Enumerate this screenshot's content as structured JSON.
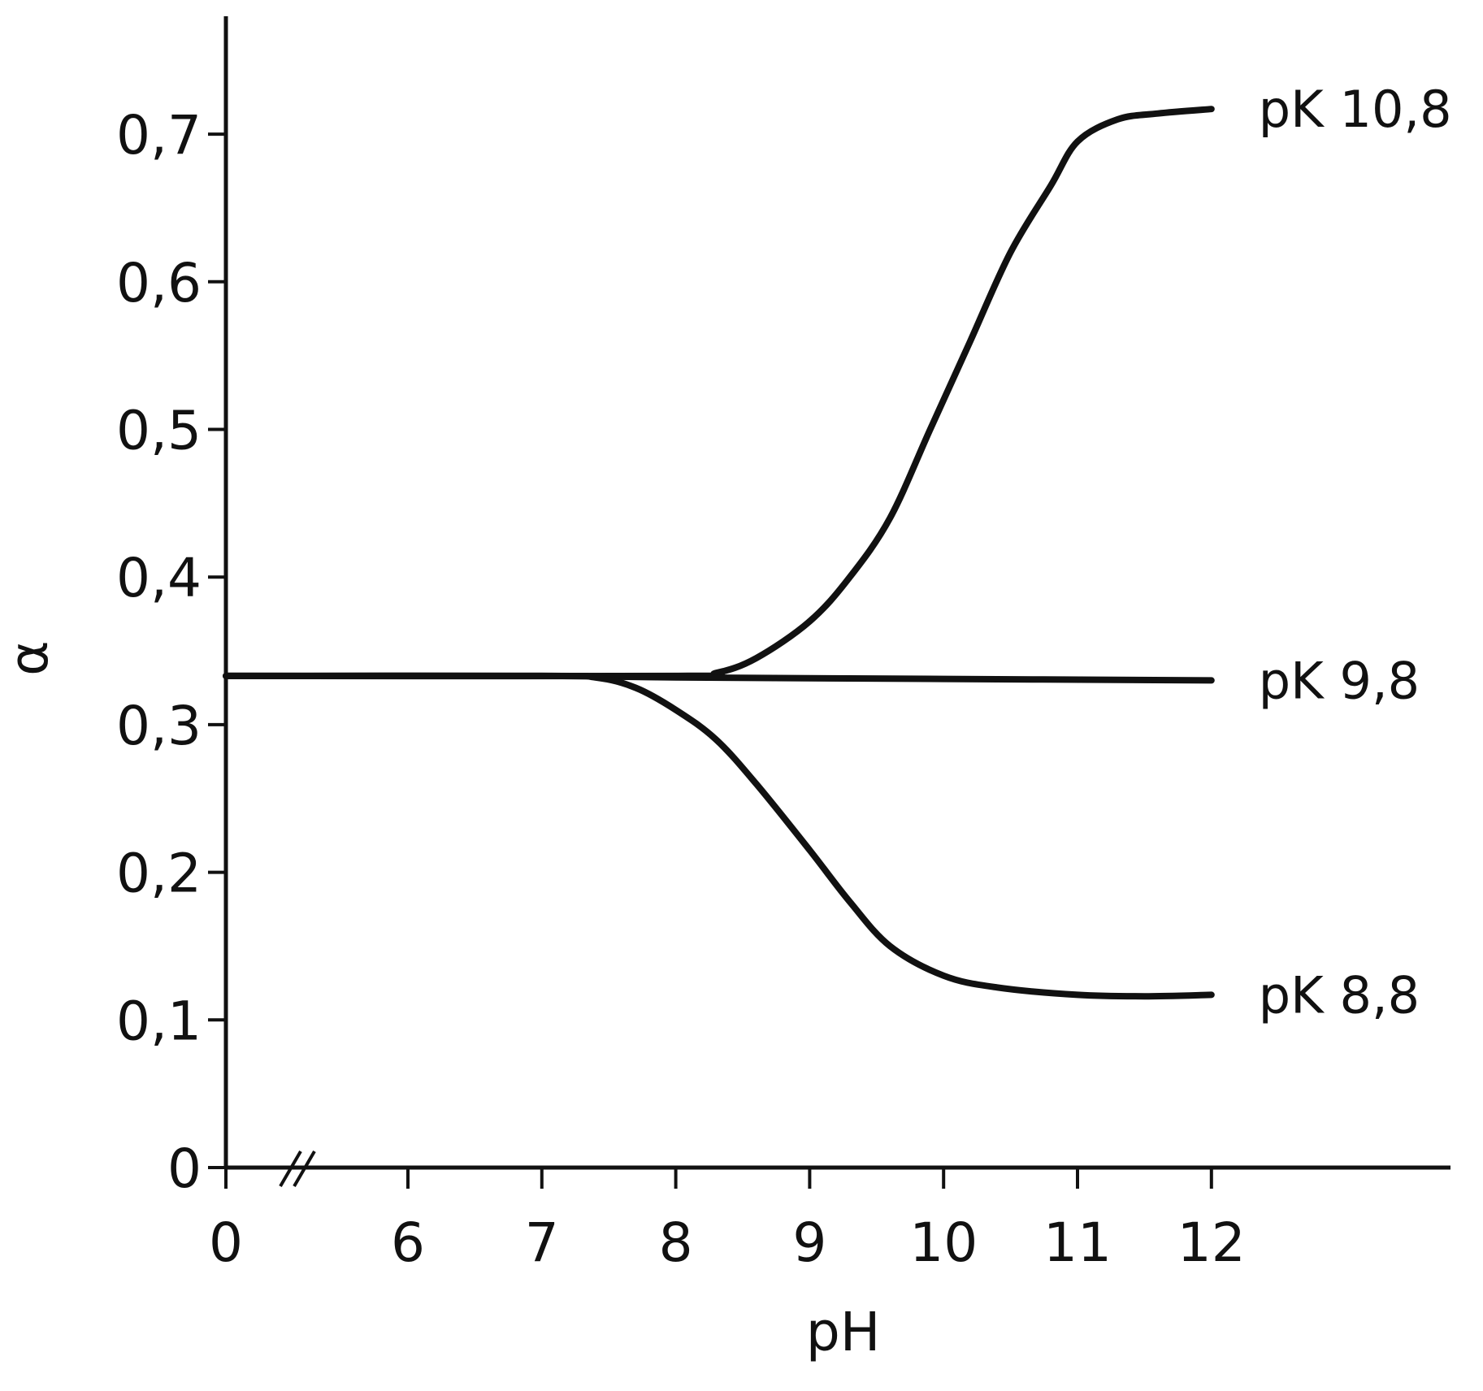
{
  "chart_data": {
    "type": "line",
    "title": "",
    "xlabel": "pH",
    "ylabel": "α",
    "x_axis": {
      "broken": true,
      "break_from": 0,
      "break_to": 5,
      "ticks": [
        {
          "value": 0,
          "label": "0"
        },
        {
          "value": 6,
          "label": "6"
        },
        {
          "value": 7,
          "label": "7"
        },
        {
          "value": 8,
          "label": "8"
        },
        {
          "value": 9,
          "label": "9"
        },
        {
          "value": 10,
          "label": "10"
        },
        {
          "value": 11,
          "label": "11"
        },
        {
          "value": 12,
          "label": "12"
        }
      ]
    },
    "y_axis": {
      "ylim": [
        0,
        0.78
      ],
      "ticks": [
        {
          "value": 0,
          "label": "0"
        },
        {
          "value": 0.1,
          "label": "0,1"
        },
        {
          "value": 0.2,
          "label": "0,2"
        },
        {
          "value": 0.3,
          "label": "0,3"
        },
        {
          "value": 0.4,
          "label": "0,4"
        },
        {
          "value": 0.5,
          "label": "0,5"
        },
        {
          "value": 0.6,
          "label": "0,6"
        },
        {
          "value": 0.7,
          "label": "0,7"
        }
      ]
    },
    "grid": false,
    "series": [
      {
        "name": "pK 10,8",
        "points": [
          [
            0,
            0.333
          ],
          [
            8.0,
            0.333
          ],
          [
            8.3,
            0.335
          ],
          [
            8.6,
            0.345
          ],
          [
            9.0,
            0.37
          ],
          [
            9.3,
            0.4
          ],
          [
            9.6,
            0.44
          ],
          [
            9.9,
            0.5
          ],
          [
            10.2,
            0.56
          ],
          [
            10.5,
            0.62
          ],
          [
            10.8,
            0.665
          ],
          [
            11.0,
            0.695
          ],
          [
            11.3,
            0.71
          ],
          [
            11.6,
            0.714
          ],
          [
            12.0,
            0.717
          ]
        ]
      },
      {
        "name": "pK 9,8",
        "points": [
          [
            0,
            0.333
          ],
          [
            7.0,
            0.333
          ],
          [
            8.0,
            0.332
          ],
          [
            10.0,
            0.331
          ],
          [
            12.0,
            0.33
          ]
        ]
      },
      {
        "name": "pK 8,8",
        "points": [
          [
            0,
            0.333
          ],
          [
            7.0,
            0.333
          ],
          [
            7.4,
            0.332
          ],
          [
            7.7,
            0.325
          ],
          [
            8.0,
            0.31
          ],
          [
            8.3,
            0.29
          ],
          [
            8.6,
            0.26
          ],
          [
            9.0,
            0.215
          ],
          [
            9.3,
            0.18
          ],
          [
            9.6,
            0.15
          ],
          [
            10.0,
            0.13
          ],
          [
            10.4,
            0.122
          ],
          [
            11.0,
            0.117
          ],
          [
            11.5,
            0.116
          ],
          [
            12.0,
            0.117
          ]
        ]
      }
    ]
  }
}
